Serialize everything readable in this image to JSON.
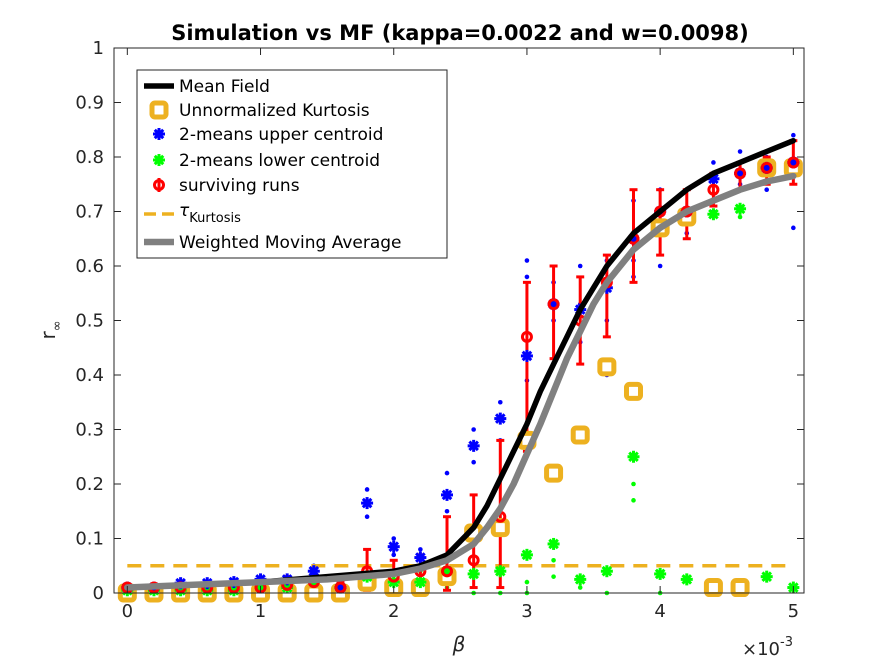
{
  "chart_data": {
    "type": "scatter",
    "title": "Simulation vs MF (kappa=0.0022 and w=0.0098)",
    "xlabel": "β",
    "ylabel": "r∞",
    "x_exponent_label": "×10",
    "x_exponent": "-3",
    "xlim": [
      -0.0001,
      0.00508
    ],
    "ylim": [
      0,
      1
    ],
    "x_ticks": [
      0,
      0.001,
      0.002,
      0.003,
      0.004,
      0.005
    ],
    "x_tick_labels": [
      "0",
      "1",
      "2",
      "3",
      "4",
      "5"
    ],
    "y_ticks": [
      0,
      0.1,
      0.2,
      0.3,
      0.4,
      0.5,
      0.6,
      0.7,
      0.8,
      0.9,
      1
    ],
    "y_tick_labels": [
      "0",
      "0.1",
      "0.2",
      "0.3",
      "0.4",
      "0.5",
      "0.6",
      "0.7",
      "0.8",
      "0.9",
      "1"
    ],
    "legend_position": "top-left",
    "colors": {
      "mean_field": "#000000",
      "kurtosis": "#EDB120",
      "upper": "#0000FF",
      "lower": "#00FF00",
      "surviving": "#FF0000",
      "wma": "#808080"
    },
    "series": [
      {
        "name": "Mean Field",
        "style": "line",
        "x": [
          0,
          0.0005,
          0.001,
          0.0015,
          0.002,
          0.0022,
          0.0024,
          0.0026,
          0.0027,
          0.0028,
          0.0029,
          0.003,
          0.0031,
          0.0032,
          0.0033,
          0.0034,
          0.0035,
          0.0036,
          0.0038,
          0.004,
          0.0042,
          0.0044,
          0.0046,
          0.0048,
          0.005
        ],
        "y": [
          0.01,
          0.015,
          0.02,
          0.03,
          0.04,
          0.05,
          0.07,
          0.12,
          0.16,
          0.21,
          0.26,
          0.31,
          0.37,
          0.42,
          0.47,
          0.52,
          0.56,
          0.6,
          0.66,
          0.7,
          0.74,
          0.77,
          0.79,
          0.81,
          0.83
        ]
      },
      {
        "name": "Unnormalized Kurtosis",
        "style": "square",
        "x": [
          0,
          0.0002,
          0.0004,
          0.0006,
          0.0008,
          0.001,
          0.0012,
          0.0014,
          0.0016,
          0.0018,
          0.002,
          0.0022,
          0.0024,
          0.0026,
          0.0028,
          0.003,
          0.0032,
          0.0034,
          0.0036,
          0.0038,
          0.004,
          0.0042,
          0.0044,
          0.0046,
          0.0048,
          0.005
        ],
        "y": [
          0.0,
          0.0,
          0.0,
          0.0,
          0.0,
          0.0,
          0.0,
          0.0,
          0.0,
          0.02,
          0.01,
          0.01,
          0.03,
          0.11,
          0.12,
          0.28,
          0.22,
          0.29,
          0.415,
          0.37,
          0.67,
          0.69,
          0.01,
          0.01,
          0.78,
          0.78
        ]
      },
      {
        "name": "2-means upper centroid",
        "style": "star",
        "x": [
          0,
          0.0002,
          0.0004,
          0.0006,
          0.0008,
          0.001,
          0.0012,
          0.0014,
          0.0016,
          0.0018,
          0.002,
          0.0022,
          0.0024,
          0.0026,
          0.0028,
          0.003,
          0.0032,
          0.0034,
          0.0036,
          0.0038,
          0.004,
          0.0042,
          0.0044,
          0.0046,
          0.0048,
          0.005
        ],
        "y": [
          0.01,
          0.01,
          0.018,
          0.018,
          0.02,
          0.025,
          0.025,
          0.04,
          0.01,
          0.165,
          0.085,
          0.065,
          0.18,
          0.27,
          0.32,
          0.435,
          0.53,
          0.52,
          0.56,
          0.65,
          0.7,
          0.7,
          0.76,
          0.77,
          0.78,
          0.79
        ]
      },
      {
        "name": "2-means lower centroid",
        "style": "star",
        "x": [
          0,
          0.0002,
          0.0004,
          0.0006,
          0.0008,
          0.001,
          0.0012,
          0.0014,
          0.0016,
          0.0018,
          0.002,
          0.0022,
          0.0024,
          0.0026,
          0.0028,
          0.003,
          0.0032,
          0.0034,
          0.0036,
          0.0038,
          0.004,
          0.0042,
          0.0044,
          0.0046,
          0.0048,
          0.005
        ],
        "y": [
          0.005,
          0.005,
          0.005,
          0.005,
          0.005,
          0.01,
          0.01,
          0.02,
          0.01,
          0.03,
          0.02,
          0.02,
          0.04,
          0.035,
          0.04,
          0.07,
          0.09,
          0.025,
          0.04,
          0.25,
          0.035,
          0.025,
          0.695,
          0.705,
          0.03,
          0.01
        ]
      },
      {
        "name": "surviving runs",
        "style": "errorbar",
        "x": [
          0,
          0.0002,
          0.0004,
          0.0006,
          0.0008,
          0.001,
          0.0012,
          0.0014,
          0.0016,
          0.0018,
          0.002,
          0.0022,
          0.0024,
          0.0026,
          0.0028,
          0.003,
          0.0032,
          0.0034,
          0.0036,
          0.0038,
          0.004,
          0.0042,
          0.0044,
          0.0046,
          0.0048,
          0.005
        ],
        "y": [
          0.01,
          0.01,
          0.01,
          0.01,
          0.01,
          0.01,
          0.015,
          0.02,
          0.01,
          0.04,
          0.03,
          0.04,
          0.04,
          0.06,
          0.14,
          0.47,
          0.53,
          0.5,
          0.57,
          0.65,
          0.7,
          0.7,
          0.74,
          0.77,
          0.78,
          0.79
        ],
        "low": [
          0.005,
          0.005,
          0.005,
          0.005,
          0.005,
          0.005,
          0.005,
          0.005,
          0.005,
          0.005,
          0.005,
          0.005,
          0.005,
          0.01,
          0.01,
          0.26,
          0.43,
          0.42,
          0.47,
          0.57,
          0.62,
          0.65,
          0.71,
          0.74,
          0.75,
          0.75
        ],
        "high": [
          0.015,
          0.015,
          0.015,
          0.015,
          0.015,
          0.015,
          0.03,
          0.04,
          0.02,
          0.08,
          0.06,
          0.07,
          0.14,
          0.18,
          0.28,
          0.57,
          0.6,
          0.58,
          0.62,
          0.74,
          0.74,
          0.74,
          0.77,
          0.79,
          0.8,
          0.83
        ]
      },
      {
        "name": "τ_Kurtosis",
        "name_main": "τ",
        "name_sub": "Kurtosis",
        "style": "dashed",
        "x": [
          0,
          0.005
        ],
        "y": [
          0.05,
          0.05
        ]
      },
      {
        "name": "Weighted Moving Average",
        "style": "line",
        "x": [
          0,
          0.0005,
          0.001,
          0.0015,
          0.002,
          0.0022,
          0.0024,
          0.0026,
          0.0027,
          0.0028,
          0.0029,
          0.003,
          0.0031,
          0.0032,
          0.0033,
          0.0034,
          0.0035,
          0.0036,
          0.0038,
          0.004,
          0.0042,
          0.0044,
          0.0046,
          0.0048,
          0.005
        ],
        "y": [
          0.01,
          0.015,
          0.02,
          0.025,
          0.035,
          0.045,
          0.06,
          0.09,
          0.12,
          0.155,
          0.2,
          0.255,
          0.31,
          0.37,
          0.43,
          0.48,
          0.53,
          0.57,
          0.63,
          0.67,
          0.7,
          0.72,
          0.74,
          0.755,
          0.765
        ]
      }
    ],
    "scatter_points": {
      "upper_x": [
        0.0014,
        0.0014,
        0.0018,
        0.0018,
        0.002,
        0.002,
        0.0022,
        0.0022,
        0.0024,
        0.0024,
        0.0026,
        0.0026,
        0.0028,
        0.0028,
        0.003,
        0.003,
        0.003,
        0.0032,
        0.0032,
        0.0034,
        0.0034,
        0.0034,
        0.0036,
        0.0036,
        0.0036,
        0.0038,
        0.0038,
        0.0038,
        0.004,
        0.004,
        0.0042,
        0.0042,
        0.0044,
        0.0044,
        0.0046,
        0.0046,
        0.0048,
        0.0048,
        0.005,
        0.005
      ],
      "upper_y": [
        0.05,
        0.03,
        0.19,
        0.14,
        0.1,
        0.07,
        0.08,
        0.05,
        0.22,
        0.15,
        0.3,
        0.24,
        0.35,
        0.28,
        0.58,
        0.39,
        0.61,
        0.57,
        0.5,
        0.6,
        0.46,
        0.53,
        0.61,
        0.5,
        0.4,
        0.72,
        0.61,
        0.58,
        0.74,
        0.6,
        0.74,
        0.66,
        0.79,
        0.7,
        0.81,
        0.75,
        0.8,
        0.74,
        0.84,
        0.67
      ],
      "lower_x": [
        0.0016,
        0.0018,
        0.0018,
        0.002,
        0.0022,
        0.0022,
        0.0024,
        0.0026,
        0.0028,
        0.003,
        0.003,
        0.0032,
        0.0032,
        0.0034,
        0.0036,
        0.0038,
        0.0038,
        0.004,
        0.0044,
        0.0046
      ],
      "lower_y": [
        0.02,
        0.01,
        0.05,
        0.01,
        0.01,
        0.04,
        0.01,
        0.0,
        0.0,
        0.0,
        0.02,
        0.06,
        0.03,
        0.01,
        0.0,
        0.2,
        0.17,
        0.0,
        0.72,
        0.69
      ]
    }
  }
}
